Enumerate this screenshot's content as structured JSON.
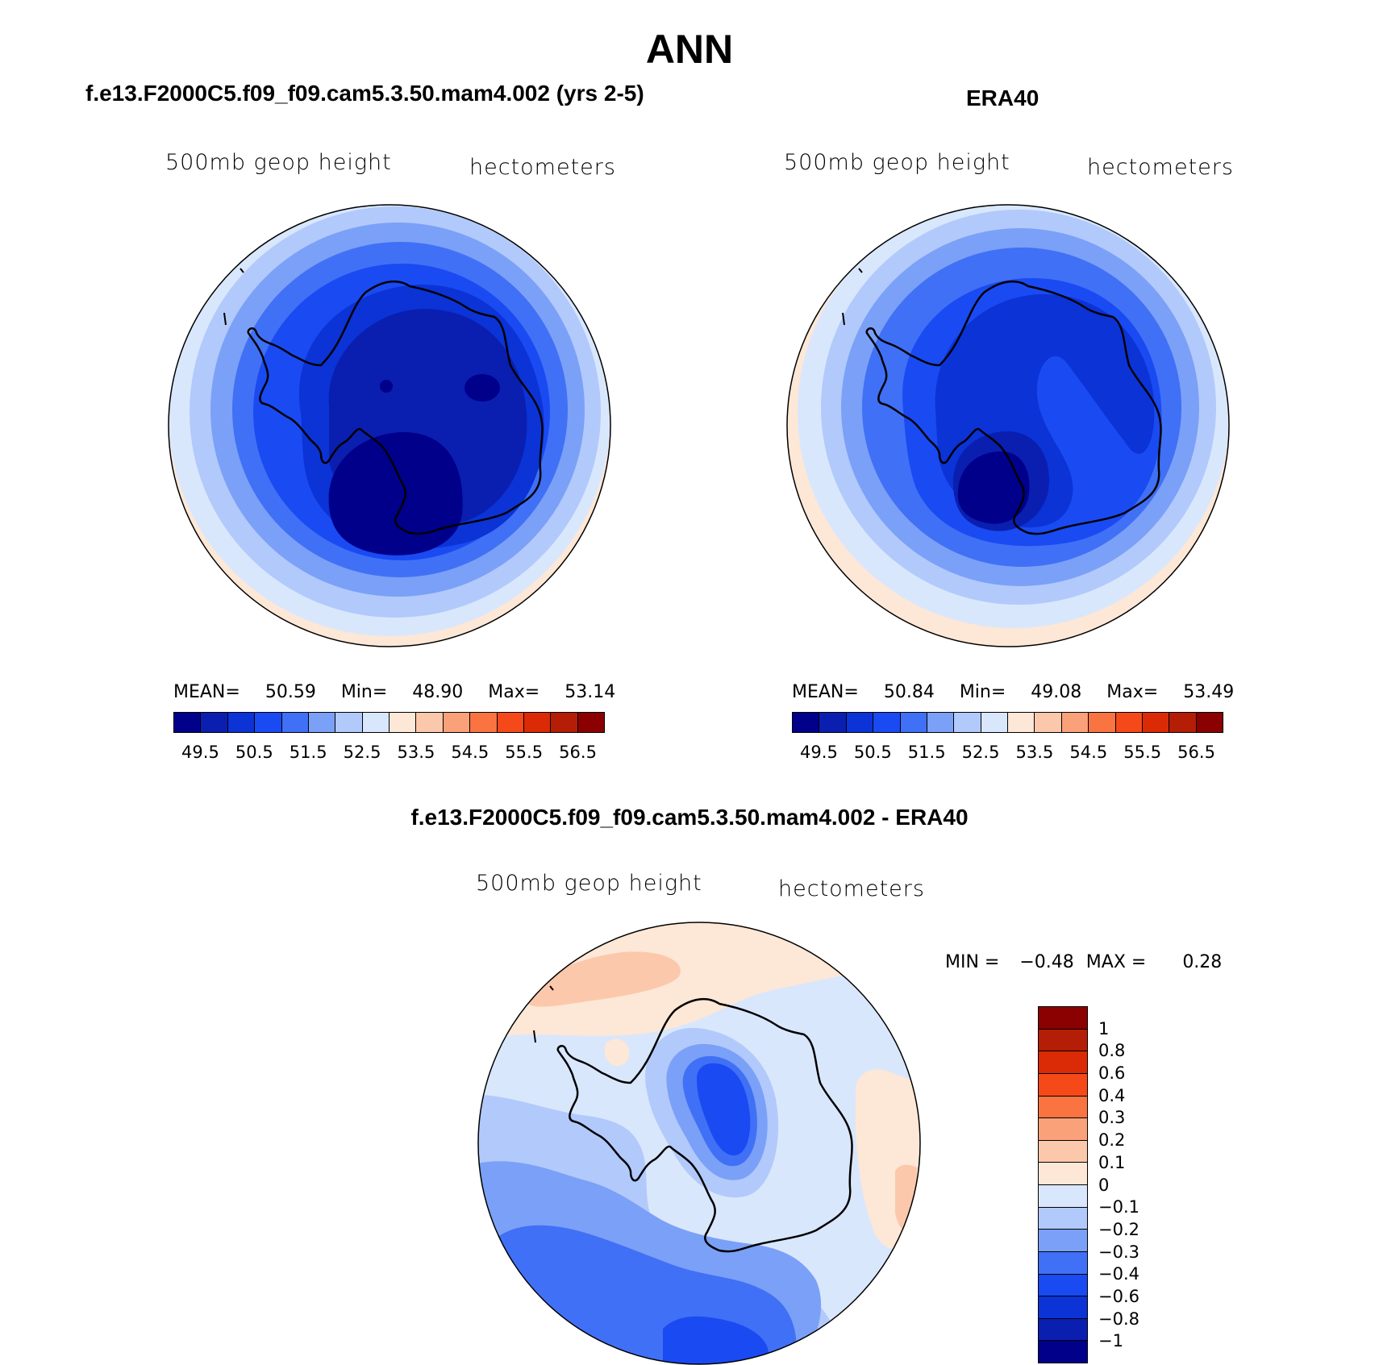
{
  "figure": {
    "title": "ANN"
  },
  "panels": [
    {
      "id": "model",
      "title": "f.e13.F2000C5.f09_f09.cam5.3.50.mam4.002 (yrs 2-5)",
      "variable": "500mb geop height",
      "units": "hectometers",
      "stats": {
        "mean_label": "MEAN=",
        "mean": "50.59",
        "min_label": "Min=",
        "min": "48.90",
        "max_label": "Max=",
        "max": "53.14"
      }
    },
    {
      "id": "obs",
      "title": "ERA40",
      "variable": "500mb geop height",
      "units": "hectometers",
      "stats": {
        "mean_label": "MEAN=",
        "mean": "50.84",
        "min_label": "Min=",
        "min": "49.08",
        "max_label": "Max=",
        "max": "53.49"
      }
    },
    {
      "id": "diff",
      "title": "f.e13.F2000C5.f09_f09.cam5.3.50.mam4.002 - ERA40",
      "variable": "500mb geop height",
      "units": "hectometers",
      "stats": {
        "min_label": "MIN =",
        "min": "−0.48",
        "max_label": "MAX =",
        "max": "0.28"
      }
    }
  ],
  "colorbars": {
    "abs": {
      "colors": [
        "#00008b",
        "#0a1fb0",
        "#0b33d6",
        "#1a4af2",
        "#4070f5",
        "#7ba0f7",
        "#b2c9fb",
        "#d9e7fd",
        "#fde7d6",
        "#fcc8ab",
        "#fba17a",
        "#fa7442",
        "#f5491a",
        "#db2a06",
        "#b41e06",
        "#8b0000"
      ],
      "ticks": [
        "49.5",
        "50.5",
        "51.5",
        "52.5",
        "53.5",
        "54.5",
        "55.5",
        "56.5"
      ]
    },
    "diff": {
      "colors": [
        "#8b0000",
        "#b41e06",
        "#db2a06",
        "#f5491a",
        "#fa7442",
        "#fba17a",
        "#fcc8ab",
        "#fde7d6",
        "#d9e7fd",
        "#b2c9fb",
        "#7ba0f7",
        "#4070f5",
        "#1a4af2",
        "#0b33d6",
        "#0a1fb0",
        "#00008b"
      ],
      "ticks": [
        "1",
        "0.8",
        "0.6",
        "0.4",
        "0.3",
        "0.2",
        "0.1",
        "0",
        "−0.1",
        "−0.2",
        "−0.3",
        "−0.4",
        "−0.6",
        "−0.8",
        "−1"
      ]
    }
  }
}
